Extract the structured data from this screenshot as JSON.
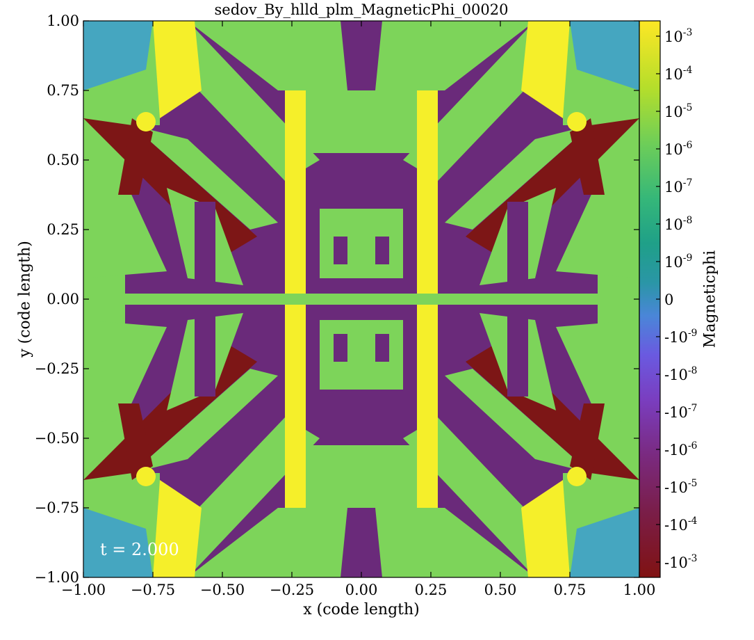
{
  "figure": {
    "title": "sedov_By_hlld_plm_MagneticPhi_00020",
    "xlabel": "x  (code length)",
    "ylabel": "y  (code length)",
    "colorbar_label": "Magneticphi",
    "time_label": "t = 2.000"
  },
  "chart_data": {
    "type": "heatmap",
    "title": "sedov_By_hlld_plm_MagneticPhi_00020",
    "xlabel": "x  (code length)",
    "ylabel": "y  (code length)",
    "xlim": [
      -1.0,
      1.0
    ],
    "ylim": [
      -1.0,
      1.0
    ],
    "x_ticks": [
      -1.0,
      -0.75,
      -0.5,
      -0.25,
      0.0,
      0.25,
      0.5,
      0.75,
      1.0
    ],
    "y_ticks": [
      -1.0,
      -0.75,
      -0.5,
      -0.25,
      0.0,
      0.25,
      0.5,
      0.75,
      1.0
    ],
    "x_tick_labels": [
      "−1.00",
      "−0.75",
      "−0.50",
      "−0.25",
      "0.00",
      "0.25",
      "0.50",
      "0.75",
      "1.00"
    ],
    "y_tick_labels": [
      "−1.00",
      "−0.75",
      "−0.50",
      "−0.25",
      "0.00",
      "0.25",
      "0.50",
      "0.75",
      "1.00"
    ],
    "colorbar": {
      "label": "Magneticphi",
      "scale": "symlog",
      "tick_labels": [
        "10",
        "10",
        "10",
        "10",
        "10",
        "10",
        "10",
        "0",
        "-10",
        "-10",
        "-10",
        "-10",
        "-10",
        "-10",
        "-10"
      ],
      "tick_exponents": [
        "-3",
        "-4",
        "-5",
        "-6",
        "-7",
        "-8",
        "-9",
        "",
        "-9",
        "-8",
        "-7",
        "-6",
        "-5",
        "-4",
        "-3"
      ],
      "colormap": [
        "#fde725",
        "#b5de2b",
        "#6ece58",
        "#35b779",
        "#1f9e89",
        "#26828e",
        "#3e94c8",
        "#5b6fd9",
        "#7b4fd0",
        "#7a2f9a",
        "#7a1f55",
        "#7f1414"
      ]
    },
    "annotation": "t = 2.000",
    "description_colors": {
      "positive_high": "#f5ef2a",
      "positive_mid": "#7dd45a",
      "near_zero": "#45a6c0",
      "negative_mid": "#6a2a7a",
      "negative_high": "#7d1616"
    }
  }
}
